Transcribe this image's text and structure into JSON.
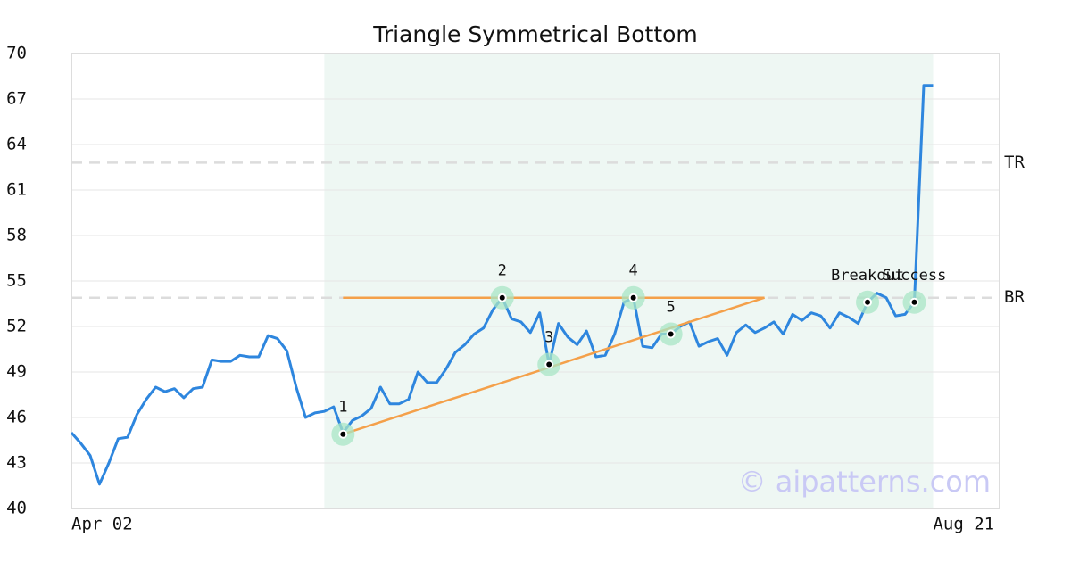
{
  "chart_data": {
    "type": "line",
    "title": "Triangle Symmetrical Bottom",
    "series": [
      {
        "color": "#2e86de",
        "values": [
          45.0,
          44.3,
          43.5,
          41.6,
          43.0,
          44.6,
          44.7,
          46.2,
          47.2,
          48.0,
          47.7,
          47.9,
          47.3,
          47.9,
          48.0,
          49.8,
          49.7,
          49.7,
          50.1,
          50.0,
          50.0,
          51.4,
          51.2,
          50.4,
          48.0,
          46.0,
          46.3,
          46.4,
          46.7,
          45.0,
          45.8,
          46.1,
          46.6,
          48.0,
          46.9,
          46.9,
          47.2,
          49.0,
          48.3,
          48.3,
          49.2,
          50.3,
          50.8,
          51.5,
          51.9,
          53.1,
          53.9,
          52.5,
          52.3,
          51.6,
          52.9,
          49.5,
          52.2,
          51.3,
          50.8,
          51.7,
          50.0,
          50.1,
          51.5,
          53.6,
          53.9,
          50.7,
          50.6,
          51.5,
          51.5,
          52.0,
          52.3,
          50.7,
          51.0,
          51.2,
          50.1,
          51.6,
          52.1,
          51.6,
          51.9,
          52.3,
          51.5,
          52.8,
          52.4,
          52.9,
          52.7,
          51.9,
          52.9,
          52.6,
          52.2,
          53.6,
          54.2,
          53.9,
          52.7,
          52.8,
          53.6,
          67.9,
          67.9
        ]
      }
    ],
    "xlim": [
      0,
      99.1
    ],
    "xticks": [
      {
        "value": 0,
        "label": "Apr 02"
      },
      {
        "value": 92,
        "label": "Aug 21"
      }
    ],
    "ylim": [
      40,
      70
    ],
    "yticks": [
      40,
      43,
      46,
      49,
      52,
      55,
      58,
      61,
      64,
      67,
      70
    ],
    "grid": true,
    "shade": {
      "x": [
        27,
        92
      ],
      "color": "#eef7f3"
    },
    "pattern_lines": [
      {
        "color": "#f4a04a",
        "x": [
          29,
          74
        ],
        "y": [
          53.9,
          53.9
        ]
      },
      {
        "color": "#f4a04a",
        "x": [
          29,
          74
        ],
        "y": [
          44.9,
          53.9
        ]
      }
    ],
    "points": [
      {
        "label": "1",
        "x": 29,
        "y": 44.9
      },
      {
        "label": "2",
        "x": 46,
        "y": 53.9
      },
      {
        "label": "3",
        "x": 51,
        "y": 49.5
      },
      {
        "label": "4",
        "x": 60,
        "y": 53.9
      },
      {
        "label": "5",
        "x": 64,
        "y": 51.5
      },
      {
        "label": "Breakout",
        "x": 85,
        "y": 53.6
      },
      {
        "label": "Success",
        "x": 90,
        "y": 53.6
      }
    ],
    "levels": [
      {
        "label": "TR",
        "value": 62.8
      },
      {
        "label": "BR",
        "value": 53.9
      }
    ],
    "watermark": "© aipatterns.com"
  }
}
